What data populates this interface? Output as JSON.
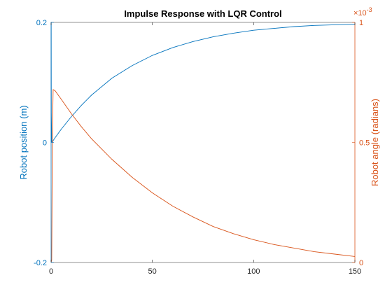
{
  "chart_data": {
    "type": "line",
    "title": "Impulse Response with LQR Control",
    "xlim": [
      0,
      150
    ],
    "x_ticks": [
      "0",
      "50",
      "100",
      "150"
    ],
    "left_axis": {
      "label": "Robot position (m)",
      "ylim": [
        -0.2,
        0.2
      ],
      "ticks": [
        "-0.2",
        "0",
        "0.2"
      ],
      "color": "#0072BD"
    },
    "right_axis": {
      "label": "Robot angle (radians)",
      "ylim": [
        0,
        1
      ],
      "ticks": [
        "0",
        "0.5",
        "1"
      ],
      "exponent_label": "×10",
      "exponent_power": "-3",
      "color": "#D95319"
    },
    "series": [
      {
        "axis": "left",
        "color": "#0072BD",
        "x": [
          0,
          0.02,
          0.05,
          0.1,
          0.3,
          0.5,
          1,
          2,
          5,
          10,
          15,
          20,
          30,
          40,
          50,
          60,
          70,
          80,
          90,
          100,
          110,
          120,
          130,
          140,
          150
        ],
        "y": [
          0,
          0.2,
          0.2,
          0.05,
          0.001,
          0.0,
          0.003,
          0.008,
          0.022,
          0.043,
          0.062,
          0.079,
          0.107,
          0.128,
          0.145,
          0.158,
          0.168,
          0.176,
          0.182,
          0.187,
          0.19,
          0.193,
          0.195,
          0.196,
          0.197
        ]
      },
      {
        "axis": "right",
        "color": "#D95319",
        "x": [
          0,
          0.3,
          0.6,
          1,
          2,
          5,
          10,
          15,
          20,
          30,
          40,
          50,
          60,
          70,
          80,
          90,
          100,
          110,
          120,
          130,
          140,
          150
        ],
        "y": [
          0,
          0.01,
          0.5,
          0.72,
          0.715,
          0.68,
          0.62,
          0.565,
          0.515,
          0.43,
          0.355,
          0.29,
          0.235,
          0.19,
          0.15,
          0.12,
          0.095,
          0.075,
          0.06,
          0.045,
          0.035,
          0.025
        ]
      }
    ],
    "grid": false,
    "legend": "none"
  }
}
